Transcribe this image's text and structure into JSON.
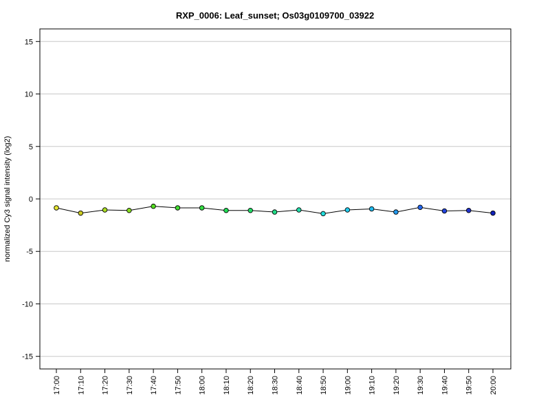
{
  "chart_data": {
    "type": "line",
    "title": "RXP_0006: Leaf_sunset; Os03g0109700_03922",
    "xlabel": "",
    "ylabel": "normalized Cy3 signal intensity (log2)",
    "ylim": [
      -16.2,
      16.2
    ],
    "yticks": [
      15,
      10,
      5,
      0,
      -5,
      -10,
      -15
    ],
    "ytick_labels": [
      "15",
      "10",
      "5",
      "0",
      "-5",
      "-10",
      "-15"
    ],
    "grid": true,
    "legend": "none",
    "categories": [
      "17:00",
      "17:10",
      "17:20",
      "17:30",
      "17:40",
      "17:50",
      "18:00",
      "18:10",
      "18:20",
      "18:30",
      "18:40",
      "18:50",
      "19:00",
      "19:10",
      "19:20",
      "19:30",
      "19:40",
      "19:50",
      "20:00"
    ],
    "series": [
      {
        "values": [
          -0.85,
          -1.35,
          -1.05,
          -1.1,
          -0.7,
          -0.85,
          -0.85,
          -1.1,
          -1.1,
          -1.25,
          -1.05,
          -1.4,
          -1.05,
          -0.95,
          -1.25,
          -0.8,
          -1.15,
          -1.1,
          -1.35
        ],
        "colors": [
          "#e6e632",
          "#cccc22",
          "#aadd22",
          "#88dd22",
          "#55dd22",
          "#44dd33",
          "#33dd44",
          "#22dd55",
          "#22dd66",
          "#22dd88",
          "#22ddaa",
          "#22dddd",
          "#22ccee",
          "#22bbee",
          "#2299ee",
          "#2266ee",
          "#2244dd",
          "#2233cc",
          "#1122bb"
        ]
      }
    ]
  }
}
